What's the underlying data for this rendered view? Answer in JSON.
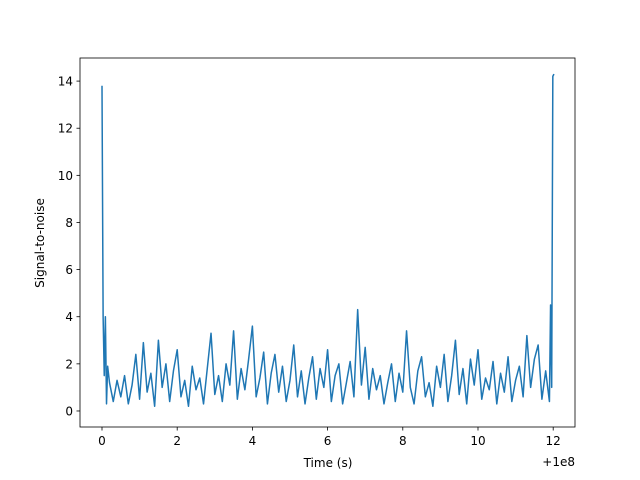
{
  "chart_data": {
    "type": "line",
    "xlabel": "Time (s)",
    "ylabel": "Signal-to-noise",
    "x_offset_label": "+1e8",
    "color": "#1f77b4",
    "xlim": [
      -0.585,
      12.58
    ],
    "xticks": [
      0,
      2,
      4,
      6,
      8,
      10,
      12
    ],
    "ylim": [
      -0.68,
      14.98
    ],
    "yticks": [
      0,
      2,
      4,
      6,
      8,
      10,
      12,
      14
    ],
    "x": [
      0,
      0.03,
      0.06,
      0.09,
      0.12,
      0.15,
      0.2,
      0.3,
      0.4,
      0.5,
      0.6,
      0.7,
      0.8,
      0.9,
      1.0,
      1.1,
      1.2,
      1.3,
      1.4,
      1.5,
      1.6,
      1.7,
      1.8,
      1.9,
      2.0,
      2.1,
      2.2,
      2.3,
      2.4,
      2.5,
      2.6,
      2.7,
      2.8,
      2.9,
      3.0,
      3.1,
      3.2,
      3.3,
      3.4,
      3.5,
      3.6,
      3.7,
      3.8,
      3.9,
      4.0,
      4.1,
      4.2,
      4.3,
      4.4,
      4.5,
      4.6,
      4.7,
      4.8,
      4.9,
      5.0,
      5.1,
      5.2,
      5.3,
      5.4,
      5.5,
      5.6,
      5.7,
      5.8,
      5.9,
      6.0,
      6.1,
      6.2,
      6.3,
      6.4,
      6.5,
      6.6,
      6.7,
      6.8,
      6.9,
      7.0,
      7.1,
      7.2,
      7.3,
      7.4,
      7.5,
      7.6,
      7.7,
      7.8,
      7.9,
      8.0,
      8.1,
      8.2,
      8.3,
      8.4,
      8.5,
      8.6,
      8.7,
      8.8,
      8.9,
      9.0,
      9.1,
      9.2,
      9.3,
      9.4,
      9.5,
      9.6,
      9.7,
      9.8,
      9.9,
      10.0,
      10.1,
      10.2,
      10.3,
      10.4,
      10.5,
      10.6,
      10.7,
      10.8,
      10.9,
      11.0,
      11.1,
      11.2,
      11.3,
      11.4,
      11.5,
      11.6,
      11.7,
      11.8,
      11.9,
      11.93,
      11.96,
      11.99,
      12.02
    ],
    "values": [
      13.8,
      4.0,
      1.5,
      4.0,
      0.3,
      1.9,
      1.2,
      0.4,
      1.3,
      0.6,
      1.5,
      0.3,
      1.1,
      2.4,
      0.5,
      2.9,
      0.8,
      1.6,
      0.2,
      3.0,
      1.0,
      2.0,
      0.4,
      1.7,
      2.6,
      0.6,
      1.3,
      0.2,
      1.9,
      0.9,
      1.4,
      0.3,
      1.8,
      3.3,
      0.7,
      1.5,
      0.4,
      2.0,
      1.1,
      3.4,
      0.5,
      1.8,
      0.9,
      2.2,
      3.6,
      0.6,
      1.4,
      2.5,
      0.3,
      1.6,
      2.4,
      0.8,
      1.9,
      0.4,
      1.3,
      2.8,
      0.6,
      1.7,
      0.3,
      1.4,
      2.3,
      0.5,
      1.8,
      1.0,
      2.6,
      0.4,
      1.5,
      2.0,
      0.3,
      1.2,
      2.1,
      0.6,
      4.3,
      1.1,
      2.7,
      0.5,
      1.8,
      0.9,
      1.5,
      0.3,
      1.2,
      2.0,
      0.4,
      1.6,
      0.8,
      3.4,
      1.0,
      0.3,
      1.7,
      2.3,
      0.6,
      1.2,
      0.2,
      1.9,
      1.0,
      2.4,
      0.4,
      1.5,
      3.0,
      0.7,
      1.8,
      0.3,
      2.2,
      1.1,
      2.6,
      0.5,
      1.4,
      0.9,
      2.1,
      0.3,
      1.6,
      0.8,
      2.3,
      0.4,
      1.3,
      1.9,
      0.6,
      3.2,
      1.0,
      2.2,
      2.8,
      0.5,
      1.7,
      0.4,
      4.5,
      1.0,
      14.2,
      14.3
    ]
  }
}
